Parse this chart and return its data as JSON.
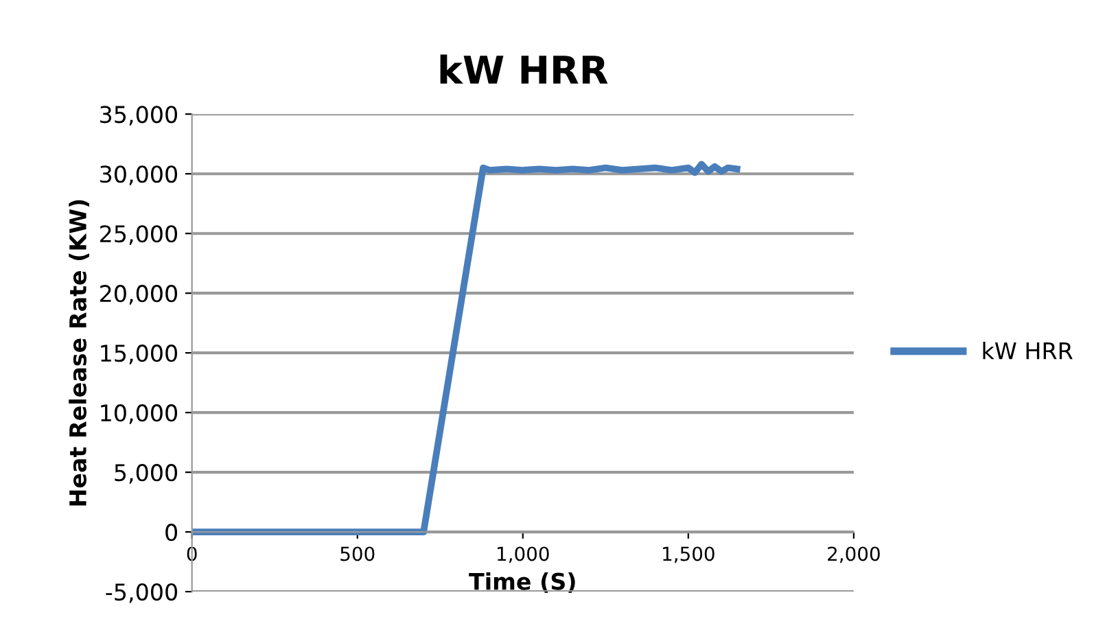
{
  "chart_data": {
    "type": "line",
    "title": "kW HRR",
    "xlabel": "Time (S)",
    "ylabel": "Heat Release Rate (KW)",
    "xlim": [
      0,
      2000
    ],
    "xticks": [
      {
        "value": 0,
        "label": "0"
      },
      {
        "value": 500,
        "label": "500"
      },
      {
        "value": 1000,
        "label": "1,000"
      },
      {
        "value": 1500,
        "label": "1,500"
      },
      {
        "value": 2000,
        "label": "2,000"
      }
    ],
    "ylim": [
      -5000,
      35000
    ],
    "yticks": [
      {
        "value": -5000,
        "label": "-5,000"
      },
      {
        "value": 0,
        "label": "0"
      },
      {
        "value": 5000,
        "label": "5,000"
      },
      {
        "value": 10000,
        "label": "10,000"
      },
      {
        "value": 15000,
        "label": "15,000"
      },
      {
        "value": 20000,
        "label": "20,000"
      },
      {
        "value": 25000,
        "label": "25,000"
      },
      {
        "value": 30000,
        "label": "30,000"
      },
      {
        "value": 35000,
        "label": "35,000"
      }
    ],
    "grid": "y",
    "legend": "right",
    "marker": "none",
    "line_style": "solid",
    "series": [
      {
        "name": "kW HRR",
        "color": "#4a7ebb",
        "x": [
          0,
          200,
          400,
          600,
          700,
          880,
          900,
          950,
          1000,
          1050,
          1100,
          1150,
          1200,
          1250,
          1300,
          1350,
          1400,
          1450,
          1500,
          1520,
          1540,
          1560,
          1580,
          1600,
          1620,
          1647
        ],
        "values": [
          0,
          0,
          0,
          0,
          0,
          30500,
          30300,
          30400,
          30300,
          30400,
          30300,
          30400,
          30300,
          30500,
          30300,
          30400,
          30500,
          30300,
          30500,
          30100,
          30800,
          30200,
          30600,
          30200,
          30500,
          30400
        ]
      }
    ]
  }
}
